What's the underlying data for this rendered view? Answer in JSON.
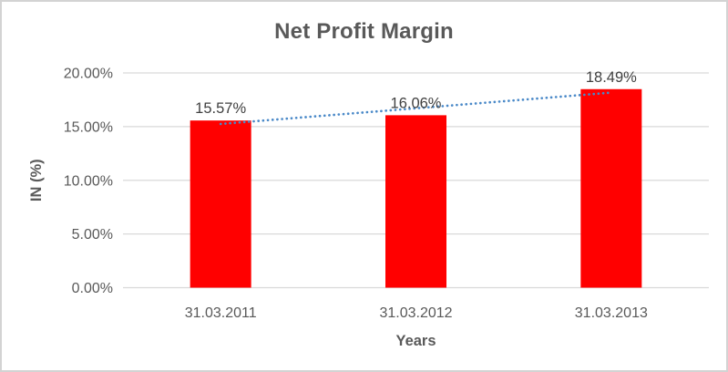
{
  "chart_data": {
    "type": "bar",
    "title": "Net Profit Margin",
    "categories": [
      "31.03.2011",
      "31.03.2012",
      "31.03.2013"
    ],
    "values": [
      15.57,
      16.06,
      18.49
    ],
    "data_labels": [
      "15.57%",
      "16.06%",
      "18.49%"
    ],
    "xlabel": "Years",
    "ylabel": "IN (%)",
    "ylim": [
      0,
      20
    ],
    "ytick_step": 5,
    "yticks": [
      {
        "value": 0,
        "label": "0.00%"
      },
      {
        "value": 5,
        "label": "5.00%"
      },
      {
        "value": 10,
        "label": "10.00%"
      },
      {
        "value": 15,
        "label": "15.00%"
      },
      {
        "value": 20,
        "label": "20.00%"
      }
    ],
    "grid": true,
    "legend": "none",
    "trendline": {
      "type": "linear",
      "style": "round-dotted"
    },
    "colors": {
      "bar": "#ff0000",
      "gridline": "#d9d9d9",
      "axis_line": "#d9d9d9",
      "tick_text": "#595959",
      "data_label_text": "#404040",
      "title_text": "#595959",
      "axis_title_text": "#595959",
      "trendline": "#4a89c8",
      "frame_border": "#d3d3d3",
      "background": "#ffffff"
    }
  }
}
